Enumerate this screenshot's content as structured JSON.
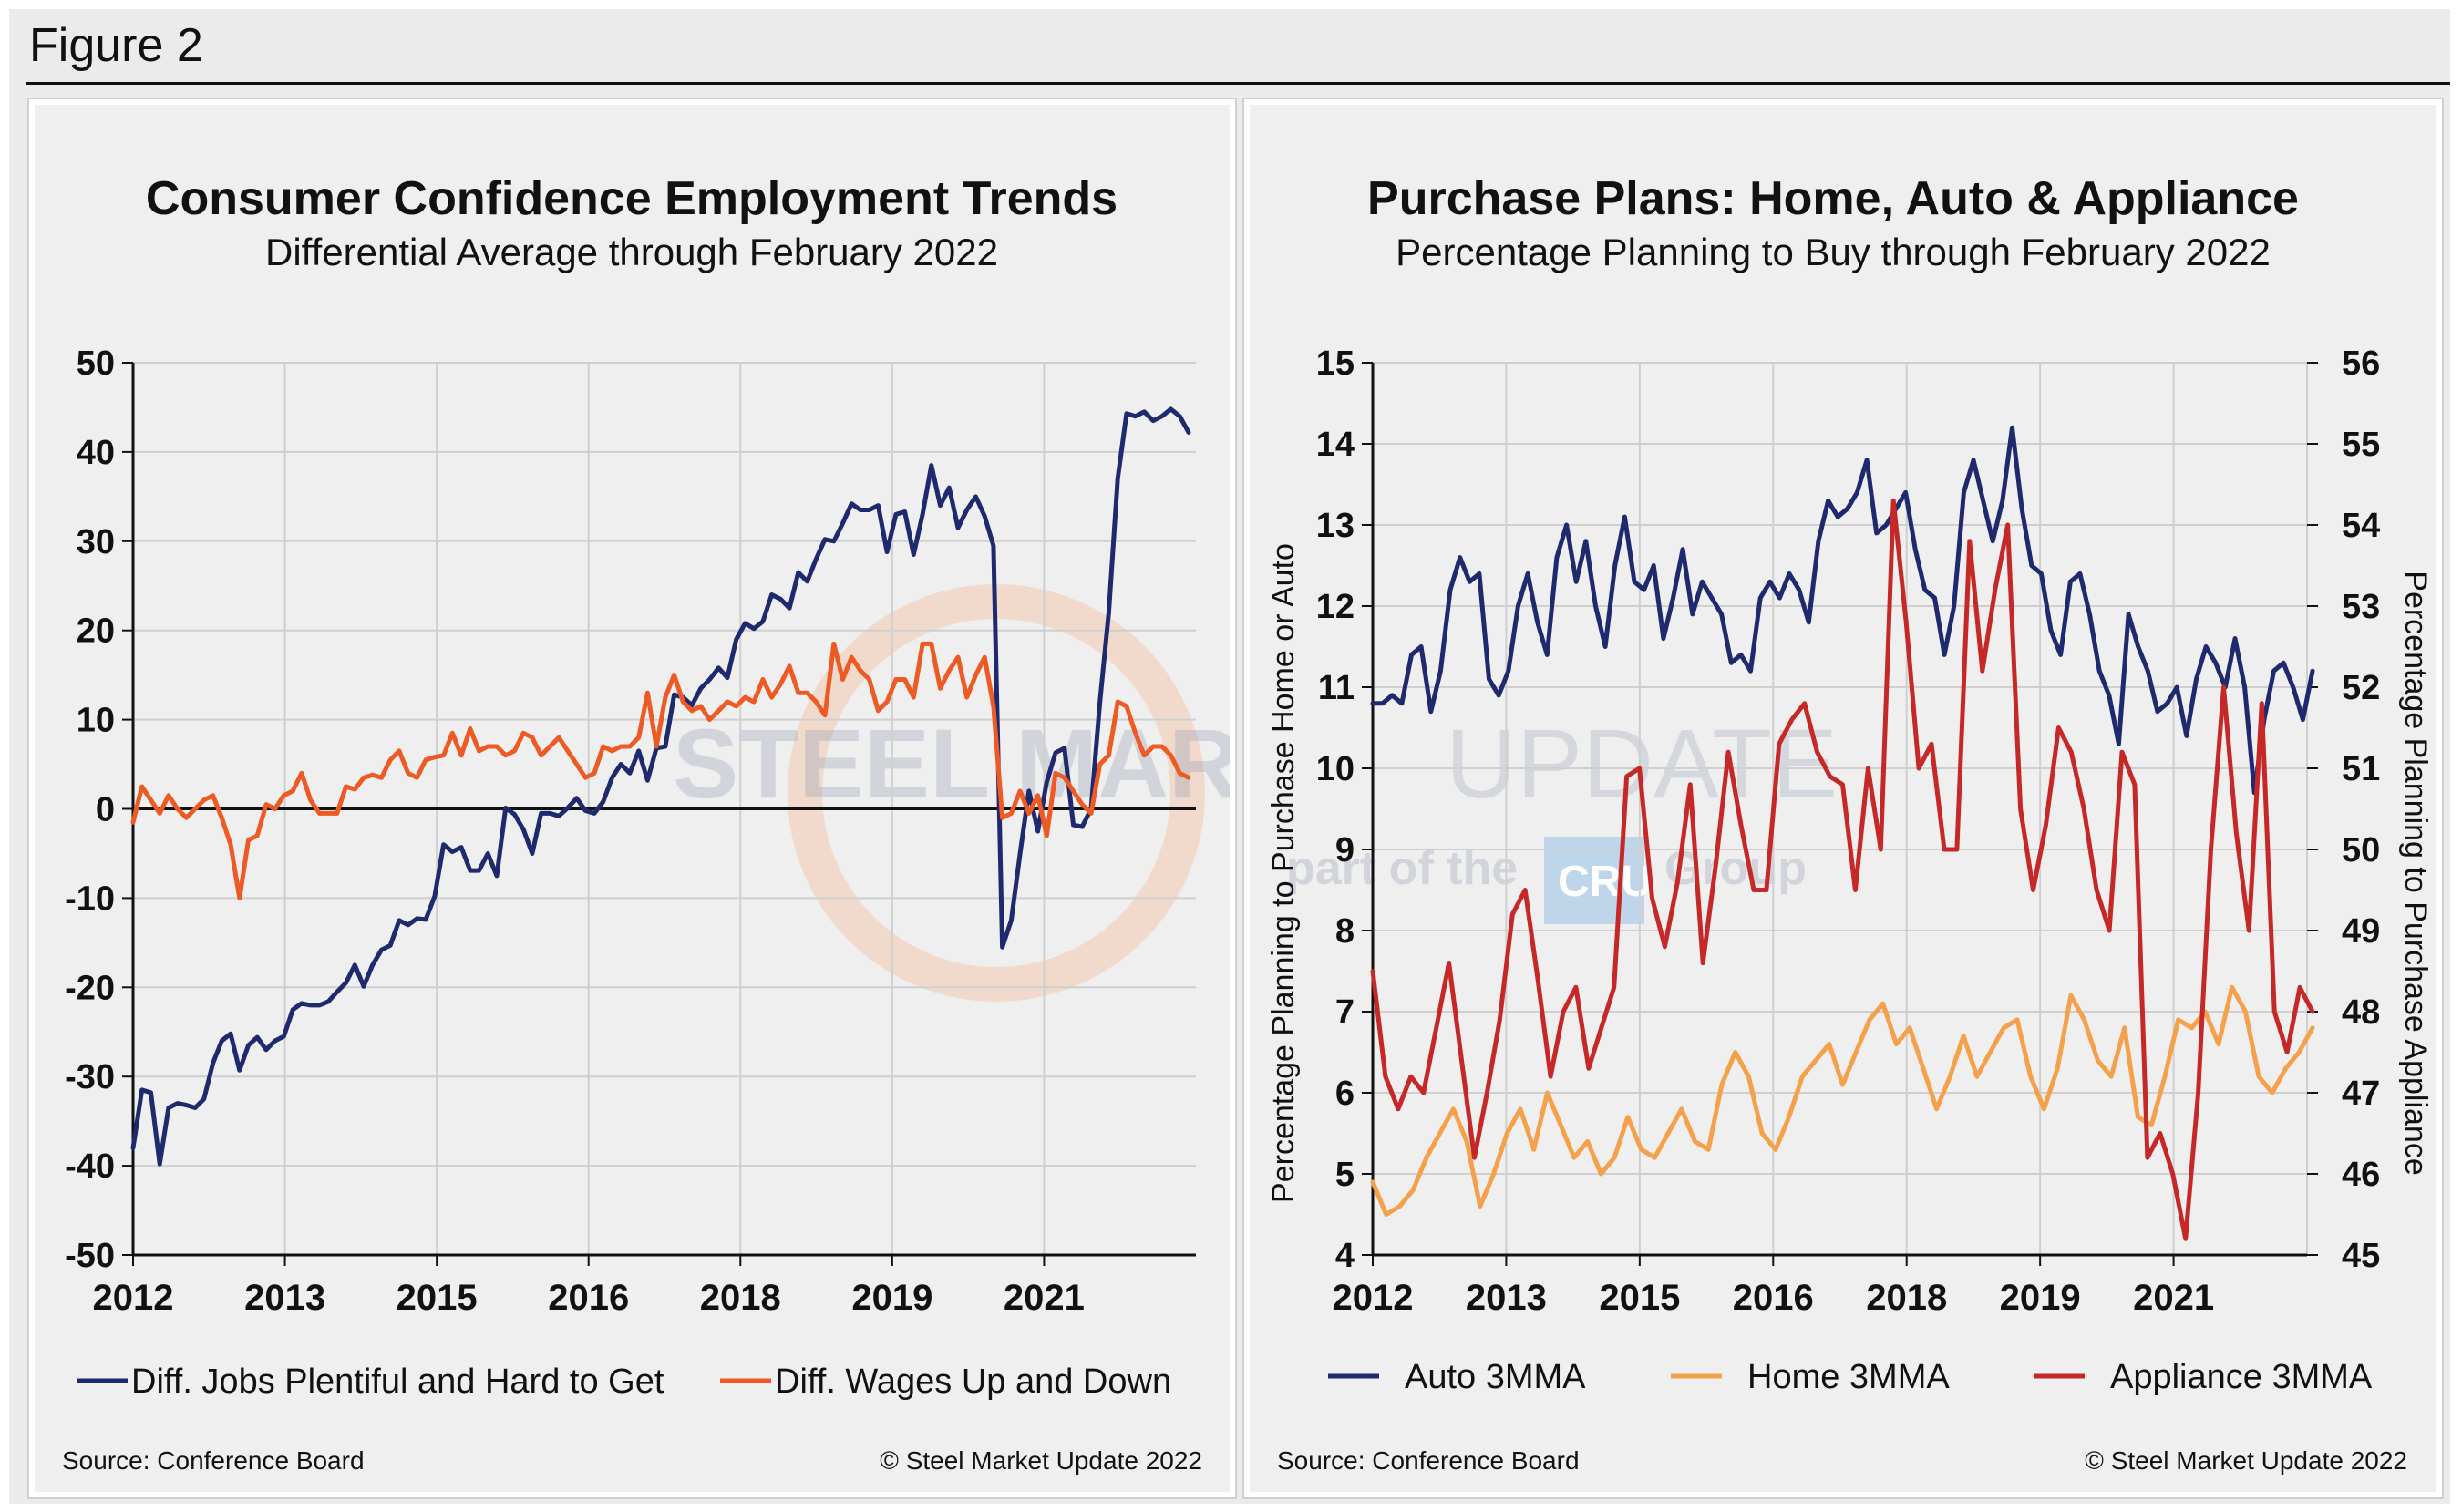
{
  "figure": {
    "label": "Figure 2"
  },
  "watermark": {
    "brand_bold": "STEEL MARKET",
    "brand_light": "UPDATE",
    "tagline_pre": "part of the",
    "tagline_cru": "CRU",
    "tagline_post": "Group"
  },
  "chart_data": [
    {
      "type": "line",
      "title": "Consumer Confidence Employment Trends",
      "subtitle": "Differential Average through February 2022",
      "xlabel": "",
      "ylabel": "",
      "ylim": [
        -50,
        50
      ],
      "yticks": [
        50,
        40,
        30,
        20,
        10,
        0,
        -10,
        -20,
        -30,
        -40,
        -50
      ],
      "xticks": [
        "2012",
        "2013",
        "2015",
        "2016",
        "2018",
        "2019",
        "2021"
      ],
      "grid": true,
      "legend_position": "bottom",
      "series": [
        {
          "name": "Diff. Jobs Plentiful and Hard to Get",
          "color": "#1f2a6e",
          "values": [
            -38,
            -31.5,
            -31.8,
            -39.8,
            -33.5,
            -33,
            -33.2,
            -33.5,
            -32.5,
            -28.5,
            -26,
            -25.2,
            -29.3,
            -26.5,
            -25.6,
            -27,
            -26,
            -25.5,
            -22.5,
            -21.8,
            -22,
            -22,
            -21.6,
            -20.5,
            -19.5,
            -17.5,
            -19.9,
            -17.5,
            -15.8,
            -15.3,
            -12.5,
            -13,
            -12.3,
            -12.4,
            -9.8,
            -4,
            -4.8,
            -4.3,
            -6.9,
            -6.9,
            -5,
            -7.5,
            0.1,
            -0.6,
            -2.3,
            -5,
            -0.5,
            -0.5,
            -0.8,
            0.1,
            1.2,
            -0.2,
            -0.5,
            0.8,
            3.5,
            5,
            4,
            6.5,
            3.2,
            6.8,
            7,
            12.8,
            12.5,
            11.6,
            13.5,
            14.5,
            15.8,
            14.7,
            19,
            20.8,
            20.2,
            21,
            24,
            23.5,
            22.5,
            26.5,
            25.5,
            28,
            30.2,
            30,
            32,
            34.2,
            33.5,
            33.5,
            34,
            28.8,
            33,
            33.3,
            28.5,
            33,
            38.5,
            34,
            36,
            31.5,
            33.5,
            35,
            32.8,
            29.5,
            -15.5,
            -12.5,
            -5,
            2,
            -2.5,
            3,
            6.3,
            6.8,
            -1.8,
            -2,
            0,
            12,
            22,
            37,
            44.3,
            44,
            44.5,
            43.5,
            44,
            44.8,
            44,
            42.2
          ]
        },
        {
          "name": "Diff. Wages Up and Down",
          "color": "#ee5a24",
          "values": [
            -1.5,
            2.5,
            1,
            -0.5,
            1.5,
            0,
            -1,
            0,
            1,
            1.5,
            -1,
            -4,
            -10,
            -3.5,
            -3,
            0.5,
            0,
            1.5,
            2,
            4,
            1,
            -0.5,
            -0.5,
            -0.5,
            2.5,
            2.2,
            3.5,
            3.8,
            3.5,
            5.5,
            6.5,
            4,
            3.5,
            5.5,
            5.8,
            6,
            8.5,
            6,
            9,
            6.5,
            7,
            7,
            6,
            6.5,
            8.5,
            8,
            6,
            7,
            8,
            6.5,
            5,
            3.5,
            4,
            7,
            6.5,
            7,
            7,
            8,
            13,
            7,
            12.5,
            15,
            12,
            11,
            11.5,
            10,
            11,
            12,
            11.5,
            12.5,
            12,
            14.5,
            12.5,
            14,
            16,
            13,
            13,
            12,
            10.5,
            18.5,
            14.5,
            17,
            15.5,
            14.5,
            11,
            12,
            14.5,
            14.5,
            12.5,
            18.5,
            18.5,
            13.5,
            15.5,
            17,
            12.5,
            15,
            17,
            11.5,
            -1,
            -0.5,
            2,
            -0.5,
            1.5,
            -3,
            4,
            3.5,
            2,
            0.5,
            -0.5,
            5,
            6,
            12,
            11.5,
            8.5,
            6,
            7,
            7,
            6,
            4,
            3.5
          ]
        }
      ],
      "source": "Source: Conference Board",
      "copyright": "© Steel Market Update 2022"
    },
    {
      "type": "line",
      "title": "Purchase Plans: Home, Auto & Appliance",
      "subtitle": "Percentage Planning to Buy through February 2022",
      "xlabel": "",
      "ylabel": "Percentage Planning to Purchase Home or Auto",
      "y2label": "Percentage Planning to Purchase Appliance",
      "ylim": [
        4,
        15
      ],
      "y2lim": [
        45,
        56
      ],
      "yticks": [
        15,
        14,
        13,
        12,
        11,
        10,
        9,
        8,
        7,
        6,
        5,
        4
      ],
      "y2ticks": [
        56,
        55,
        54,
        53,
        52,
        51,
        50,
        49,
        48,
        47,
        46,
        45
      ],
      "xticks": [
        "2012",
        "2013",
        "2015",
        "2016",
        "2018",
        "2019",
        "2021"
      ],
      "grid": true,
      "legend_position": "bottom",
      "series": [
        {
          "name": "Auto 3MMA",
          "axis": "left",
          "color": "#1f2a6e",
          "values": [
            10.8,
            10.8,
            10.9,
            10.8,
            11.4,
            11.5,
            10.7,
            11.2,
            12.2,
            12.6,
            12.3,
            12.4,
            11.1,
            10.9,
            11.2,
            12.0,
            12.4,
            11.8,
            11.4,
            12.6,
            13.0,
            12.3,
            12.8,
            12.0,
            11.5,
            12.5,
            13.1,
            12.3,
            12.2,
            12.5,
            11.6,
            12.1,
            12.7,
            11.9,
            12.3,
            12.1,
            11.9,
            11.3,
            11.4,
            11.2,
            12.1,
            12.3,
            12.1,
            12.4,
            12.2,
            11.8,
            12.8,
            13.3,
            13.1,
            13.2,
            13.4,
            13.8,
            12.9,
            13.0,
            13.2,
            13.4,
            12.7,
            12.2,
            12.1,
            11.4,
            12.0,
            13.4,
            13.8,
            13.3,
            12.8,
            13.3,
            14.2,
            13.2,
            12.5,
            12.4,
            11.7,
            11.4,
            12.3,
            12.4,
            11.9,
            11.2,
            10.9,
            10.3,
            11.9,
            11.5,
            11.2,
            10.7,
            10.8,
            11.0,
            10.4,
            11.1,
            11.5,
            11.3,
            11.0,
            11.6,
            11.0,
            9.7,
            10.6,
            11.2,
            11.3,
            11.0,
            10.6,
            11.2
          ],
          "note_values_are_sampled_evenly_over_2012_to_2022": ""
        },
        {
          "name": "Home 3MMA",
          "axis": "left",
          "color": "#f5a04a",
          "values": [
            4.9,
            4.5,
            4.6,
            4.8,
            5.2,
            5.5,
            5.8,
            5.4,
            4.6,
            5.0,
            5.5,
            5.8,
            5.3,
            6.0,
            5.6,
            5.2,
            5.4,
            5.0,
            5.2,
            5.7,
            5.3,
            5.2,
            5.5,
            5.8,
            5.4,
            5.3,
            6.1,
            6.5,
            6.2,
            5.5,
            5.3,
            5.7,
            6.2,
            6.4,
            6.6,
            6.1,
            6.5,
            6.9,
            7.1,
            6.6,
            6.8,
            6.3,
            5.8,
            6.2,
            6.7,
            6.2,
            6.5,
            6.8,
            6.9,
            6.2,
            5.8,
            6.3,
            7.2,
            6.9,
            6.4,
            6.2,
            6.8,
            5.7,
            5.6,
            6.2,
            6.9,
            6.8,
            7.0,
            6.6,
            7.3,
            7.0,
            6.2,
            6.0,
            6.3,
            6.5,
            6.8
          ],
          "note_values_are_sampled_evenly_over_2012_to_2022": ""
        },
        {
          "name": "Appliance 3MMA",
          "axis": "right",
          "color": "#c62828",
          "values": [
            48.5,
            47.2,
            46.8,
            47.2,
            47.0,
            47.8,
            48.6,
            47.4,
            46.2,
            47.0,
            47.9,
            49.2,
            49.5,
            48.4,
            47.2,
            48.0,
            48.3,
            47.3,
            47.8,
            48.3,
            50.9,
            51.0,
            49.4,
            48.8,
            49.6,
            50.8,
            48.6,
            49.8,
            51.2,
            50.3,
            49.5,
            49.5,
            51.3,
            51.6,
            51.8,
            51.2,
            50.9,
            50.8,
            49.5,
            51.0,
            50.0,
            54.3,
            52.8,
            51.0,
            51.3,
            50.0,
            50.0,
            53.8,
            52.2,
            53.2,
            54.0,
            50.5,
            49.5,
            50.3,
            51.5,
            51.2,
            50.5,
            49.5,
            49.0,
            51.2,
            50.8,
            46.2,
            46.5,
            46.0,
            45.2,
            47.0,
            50.0,
            52.0,
            50.2,
            49.0,
            51.8,
            48.0,
            47.5,
            48.3,
            48.0
          ],
          "note_values_are_sampled_evenly_over_2012_to_2022": ""
        }
      ],
      "source": "Source: Conference Board",
      "copyright": "© Steel Market Update 2022"
    }
  ]
}
